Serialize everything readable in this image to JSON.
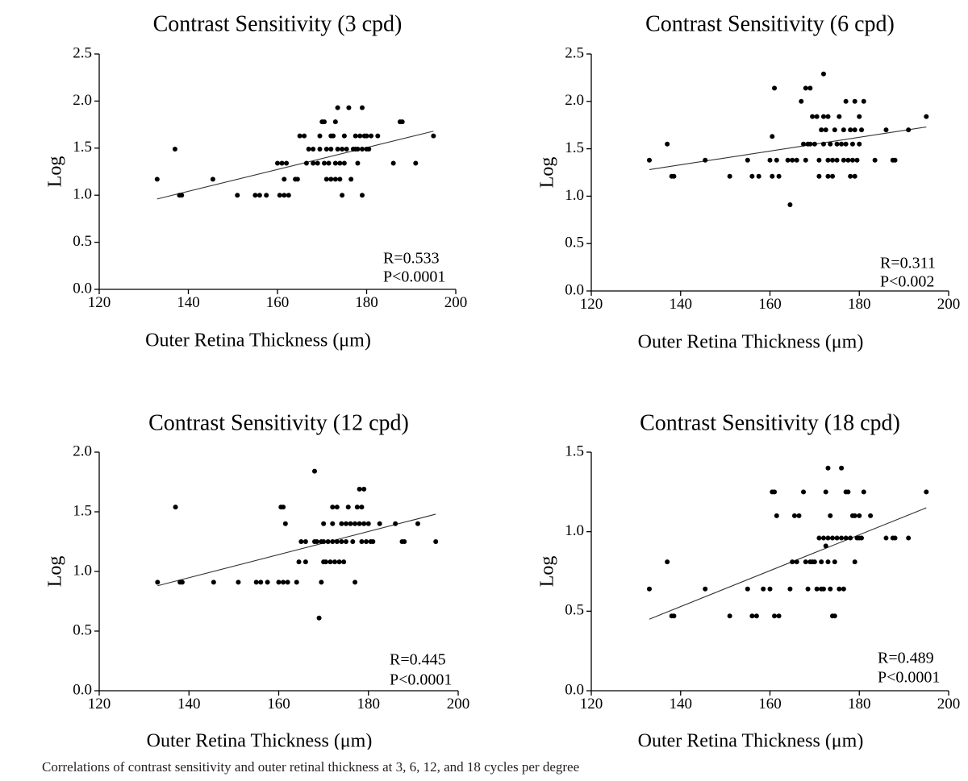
{
  "caption": "Correlations of contrast sensitivity and outer retinal thickness at 3, 6, 12, and 18 cycles per degree",
  "chart_data": [
    {
      "type": "scatter",
      "title": "Contrast Sensitivity (3 cpd)",
      "xlabel": "Outer Retina Thickness (μm)",
      "ylabel": "Log",
      "xlim": [
        120,
        200
      ],
      "ylim": [
        0,
        2.5
      ],
      "xticks": [
        "120",
        "140",
        "160",
        "180",
        "200"
      ],
      "yticks": [
        "0.0",
        "0.5",
        "1.0",
        "1.5",
        "2.0",
        "2.5"
      ],
      "annotations": [
        "R=0.533",
        "P<0.0001"
      ],
      "trendline": [
        [
          133,
          0.96
        ],
        [
          195,
          1.68
        ]
      ],
      "points": [
        [
          133,
          1.17
        ],
        [
          137,
          1.49
        ],
        [
          138,
          1.0
        ],
        [
          138.5,
          1.0
        ],
        [
          145.5,
          1.17
        ],
        [
          151,
          1.0
        ],
        [
          155,
          1.0
        ],
        [
          156,
          1.0
        ],
        [
          157.5,
          1.0
        ],
        [
          160,
          1.34
        ],
        [
          160.5,
          1.0
        ],
        [
          161,
          1.34
        ],
        [
          161.5,
          1.0
        ],
        [
          161.5,
          1.17
        ],
        [
          162,
          1.34
        ],
        [
          162.5,
          1.0
        ],
        [
          164,
          1.17
        ],
        [
          164.5,
          1.17
        ],
        [
          165,
          1.63
        ],
        [
          166,
          1.63
        ],
        [
          166.5,
          1.34
        ],
        [
          167,
          1.49
        ],
        [
          168,
          1.34
        ],
        [
          168,
          1.49
        ],
        [
          169,
          1.34
        ],
        [
          169.5,
          1.63
        ],
        [
          169.5,
          1.49
        ],
        [
          170,
          1.78
        ],
        [
          170.5,
          1.34
        ],
        [
          170.5,
          1.78
        ],
        [
          171,
          1.17
        ],
        [
          171,
          1.49
        ],
        [
          171.5,
          1.34
        ],
        [
          172,
          1.17
        ],
        [
          172,
          1.63
        ],
        [
          172,
          1.49
        ],
        [
          172.5,
          1.63
        ],
        [
          173,
          1.34
        ],
        [
          173,
          1.78
        ],
        [
          173,
          1.17
        ],
        [
          173.5,
          1.93
        ],
        [
          173.5,
          1.49
        ],
        [
          174,
          1.34
        ],
        [
          174,
          1.17
        ],
        [
          174.5,
          1.0
        ],
        [
          174.5,
          1.49
        ],
        [
          175,
          1.34
        ],
        [
          175,
          1.63
        ],
        [
          175.5,
          1.49
        ],
        [
          176,
          1.93
        ],
        [
          176.5,
          1.17
        ],
        [
          177,
          1.49
        ],
        [
          177.5,
          1.49
        ],
        [
          177.5,
          1.63
        ],
        [
          178,
          1.34
        ],
        [
          178,
          1.49
        ],
        [
          178.5,
          1.63
        ],
        [
          179,
          1.0
        ],
        [
          179,
          1.93
        ],
        [
          179,
          1.49
        ],
        [
          179.5,
          1.63
        ],
        [
          180,
          1.49
        ],
        [
          180,
          1.63
        ],
        [
          180.5,
          1.49
        ],
        [
          181,
          1.63
        ],
        [
          182.5,
          1.63
        ],
        [
          186,
          1.34
        ],
        [
          187.5,
          1.78
        ],
        [
          188,
          1.78
        ],
        [
          191,
          1.34
        ],
        [
          195,
          1.63
        ]
      ]
    },
    {
      "type": "scatter",
      "title": "Contrast Sensitivity (6 cpd)",
      "xlabel": "Outer Retina Thickness (μm)",
      "ylabel": "Log",
      "xlim": [
        120,
        200
      ],
      "ylim": [
        0,
        2.5
      ],
      "xticks": [
        "120",
        "140",
        "160",
        "180",
        "200"
      ],
      "yticks": [
        "0.0",
        "0.5",
        "1.0",
        "1.5",
        "2.0",
        "2.5"
      ],
      "annotations": [
        "R=0.311",
        "P<0.002"
      ],
      "trendline": [
        [
          133,
          1.28
        ],
        [
          195,
          1.73
        ]
      ],
      "points": [
        [
          133,
          1.38
        ],
        [
          137,
          1.55
        ],
        [
          138,
          1.21
        ],
        [
          138.5,
          1.21
        ],
        [
          145.5,
          1.38
        ],
        [
          151,
          1.21
        ],
        [
          155,
          1.38
        ],
        [
          156,
          1.21
        ],
        [
          157.5,
          1.21
        ],
        [
          160,
          1.38
        ],
        [
          160.5,
          1.21
        ],
        [
          160.5,
          1.63
        ],
        [
          161,
          2.14
        ],
        [
          161.5,
          1.38
        ],
        [
          162,
          1.21
        ],
        [
          164,
          1.38
        ],
        [
          164.5,
          0.91
        ],
        [
          165,
          1.38
        ],
        [
          166,
          1.38
        ],
        [
          167,
          2.0
        ],
        [
          167.5,
          1.55
        ],
        [
          168,
          1.38
        ],
        [
          168,
          2.14
        ],
        [
          168.5,
          1.55
        ],
        [
          169,
          1.55
        ],
        [
          169,
          2.14
        ],
        [
          169.5,
          1.84
        ],
        [
          170,
          1.55
        ],
        [
          170.5,
          1.84
        ],
        [
          171,
          1.21
        ],
        [
          171,
          1.38
        ],
        [
          171.5,
          1.7
        ],
        [
          172,
          1.55
        ],
        [
          172,
          1.84
        ],
        [
          172,
          2.29
        ],
        [
          172.5,
          1.7
        ],
        [
          173,
          1.38
        ],
        [
          173,
          1.21
        ],
        [
          173,
          1.84
        ],
        [
          173.5,
          1.55
        ],
        [
          174,
          1.21
        ],
        [
          174,
          1.38
        ],
        [
          174.5,
          1.7
        ],
        [
          175,
          1.55
        ],
        [
          175,
          1.38
        ],
        [
          175.5,
          1.84
        ],
        [
          176,
          1.55
        ],
        [
          176.5,
          1.7
        ],
        [
          176.5,
          1.38
        ],
        [
          177,
          1.55
        ],
        [
          177,
          2.0
        ],
        [
          177.5,
          1.38
        ],
        [
          178,
          1.7
        ],
        [
          178,
          1.21
        ],
        [
          178.5,
          1.38
        ],
        [
          178.5,
          1.55
        ],
        [
          179,
          1.7
        ],
        [
          179,
          1.21
        ],
        [
          179,
          2.0
        ],
        [
          179.5,
          1.38
        ],
        [
          180,
          1.55
        ],
        [
          180,
          1.84
        ],
        [
          180.5,
          1.7
        ],
        [
          181,
          2.0
        ],
        [
          183.5,
          1.38
        ],
        [
          186,
          1.7
        ],
        [
          187.5,
          1.38
        ],
        [
          188,
          1.38
        ],
        [
          191,
          1.7
        ],
        [
          195,
          1.84
        ]
      ]
    },
    {
      "type": "scatter",
      "title": "Contrast Sensitivity (12 cpd)",
      "xlabel": "Outer Retina Thickness (μm)",
      "ylabel": "Log",
      "xlim": [
        120,
        200
      ],
      "ylim": [
        0,
        2.0
      ],
      "xticks": [
        "120",
        "140",
        "160",
        "180",
        "200"
      ],
      "yticks": [
        "0.0",
        "0.5",
        "1.0",
        "1.5",
        "2.0"
      ],
      "annotations": [
        "R=0.445",
        "P<0.0001"
      ],
      "trendline": [
        [
          133,
          0.88
        ],
        [
          195,
          1.48
        ]
      ],
      "points": [
        [
          133,
          0.91
        ],
        [
          137,
          1.54
        ],
        [
          138,
          0.91
        ],
        [
          138.5,
          0.91
        ],
        [
          145.5,
          0.91
        ],
        [
          151,
          0.91
        ],
        [
          155,
          0.91
        ],
        [
          156,
          0.91
        ],
        [
          157.5,
          0.91
        ],
        [
          160,
          0.91
        ],
        [
          160.5,
          1.54
        ],
        [
          161,
          0.91
        ],
        [
          161,
          1.54
        ],
        [
          161.5,
          1.4
        ],
        [
          162,
          0.91
        ],
        [
          164,
          0.91
        ],
        [
          164.5,
          1.08
        ],
        [
          165,
          1.25
        ],
        [
          166,
          1.08
        ],
        [
          166,
          1.25
        ],
        [
          168,
          1.25
        ],
        [
          168,
          1.84
        ],
        [
          168.5,
          1.25
        ],
        [
          169,
          0.61
        ],
        [
          169.5,
          1.25
        ],
        [
          169.5,
          0.91
        ],
        [
          170,
          1.08
        ],
        [
          170,
          1.25
        ],
        [
          170,
          1.4
        ],
        [
          170.5,
          1.08
        ],
        [
          171,
          1.25
        ],
        [
          171.5,
          1.08
        ],
        [
          172,
          1.25
        ],
        [
          172,
          1.54
        ],
        [
          172,
          1.4
        ],
        [
          172.5,
          1.08
        ],
        [
          173,
          1.54
        ],
        [
          173,
          1.25
        ],
        [
          173.5,
          1.08
        ],
        [
          174,
          1.25
        ],
        [
          174,
          1.4
        ],
        [
          174.5,
          1.08
        ],
        [
          175,
          1.4
        ],
        [
          175,
          1.25
        ],
        [
          175.5,
          1.54
        ],
        [
          176,
          1.4
        ],
        [
          176.5,
          1.25
        ],
        [
          177,
          0.91
        ],
        [
          177,
          1.4
        ],
        [
          177.5,
          1.54
        ],
        [
          178,
          1.4
        ],
        [
          178,
          1.69
        ],
        [
          178.5,
          1.25
        ],
        [
          178.5,
          1.54
        ],
        [
          179,
          1.4
        ],
        [
          179,
          1.69
        ],
        [
          179.5,
          1.25
        ],
        [
          180,
          1.4
        ],
        [
          180.5,
          1.25
        ],
        [
          181,
          1.25
        ],
        [
          182.5,
          1.4
        ],
        [
          186,
          1.4
        ],
        [
          187.5,
          1.25
        ],
        [
          188,
          1.25
        ],
        [
          191,
          1.4
        ],
        [
          195,
          1.25
        ]
      ]
    },
    {
      "type": "scatter",
      "title": "Contrast Sensitivity (18 cpd)",
      "xlabel": "Outer Retina Thickness (μm)",
      "ylabel": "Log",
      "xlim": [
        120,
        200
      ],
      "ylim": [
        0,
        1.5
      ],
      "xticks": [
        "120",
        "140",
        "160",
        "180",
        "200"
      ],
      "yticks": [
        "0.0",
        "0.5",
        "1.0",
        "1.5"
      ],
      "annotations": [
        "R=0.489",
        "P<0.0001"
      ],
      "trendline": [
        [
          133,
          0.45
        ],
        [
          195,
          1.15
        ]
      ],
      "points": [
        [
          133,
          0.64
        ],
        [
          137,
          0.81
        ],
        [
          138,
          0.47
        ],
        [
          138.5,
          0.47
        ],
        [
          145.5,
          0.64
        ],
        [
          151,
          0.47
        ],
        [
          155,
          0.64
        ],
        [
          156,
          0.47
        ],
        [
          157,
          0.47
        ],
        [
          158.5,
          0.64
        ],
        [
          160,
          0.64
        ],
        [
          160.5,
          1.25
        ],
        [
          161,
          0.47
        ],
        [
          161,
          1.25
        ],
        [
          161.5,
          1.1
        ],
        [
          162,
          0.47
        ],
        [
          164.5,
          0.64
        ],
        [
          165,
          0.81
        ],
        [
          165.5,
          1.1
        ],
        [
          166,
          0.81
        ],
        [
          166.5,
          1.1
        ],
        [
          167.5,
          1.25
        ],
        [
          168,
          0.81
        ],
        [
          168.5,
          0.64
        ],
        [
          169,
          0.81
        ],
        [
          169.5,
          0.81
        ],
        [
          170,
          0.81
        ],
        [
          170.5,
          0.64
        ],
        [
          171,
          0.96
        ],
        [
          171.5,
          0.81
        ],
        [
          171.5,
          0.64
        ],
        [
          172,
          0.96
        ],
        [
          172,
          0.64
        ],
        [
          172.5,
          0.91
        ],
        [
          172.5,
          1.25
        ],
        [
          173,
          0.96
        ],
        [
          173,
          0.81
        ],
        [
          173,
          1.4
        ],
        [
          173.5,
          0.64
        ],
        [
          173.5,
          1.1
        ],
        [
          174,
          0.47
        ],
        [
          174,
          0.96
        ],
        [
          174.5,
          0.81
        ],
        [
          174.5,
          0.47
        ],
        [
          175,
          0.96
        ],
        [
          175.5,
          0.64
        ],
        [
          176,
          1.4
        ],
        [
          176,
          0.96
        ],
        [
          176.5,
          0.64
        ],
        [
          177,
          1.25
        ],
        [
          177,
          0.96
        ],
        [
          177.5,
          1.25
        ],
        [
          178,
          0.96
        ],
        [
          178.5,
          1.1
        ],
        [
          179,
          0.81
        ],
        [
          179,
          1.1
        ],
        [
          179.5,
          0.96
        ],
        [
          180,
          1.1
        ],
        [
          180,
          0.96
        ],
        [
          180.5,
          0.96
        ],
        [
          181,
          1.25
        ],
        [
          182.5,
          1.1
        ],
        [
          186,
          0.96
        ],
        [
          187.5,
          0.96
        ],
        [
          188,
          0.96
        ],
        [
          191,
          0.96
        ],
        [
          195,
          1.25
        ]
      ]
    }
  ]
}
